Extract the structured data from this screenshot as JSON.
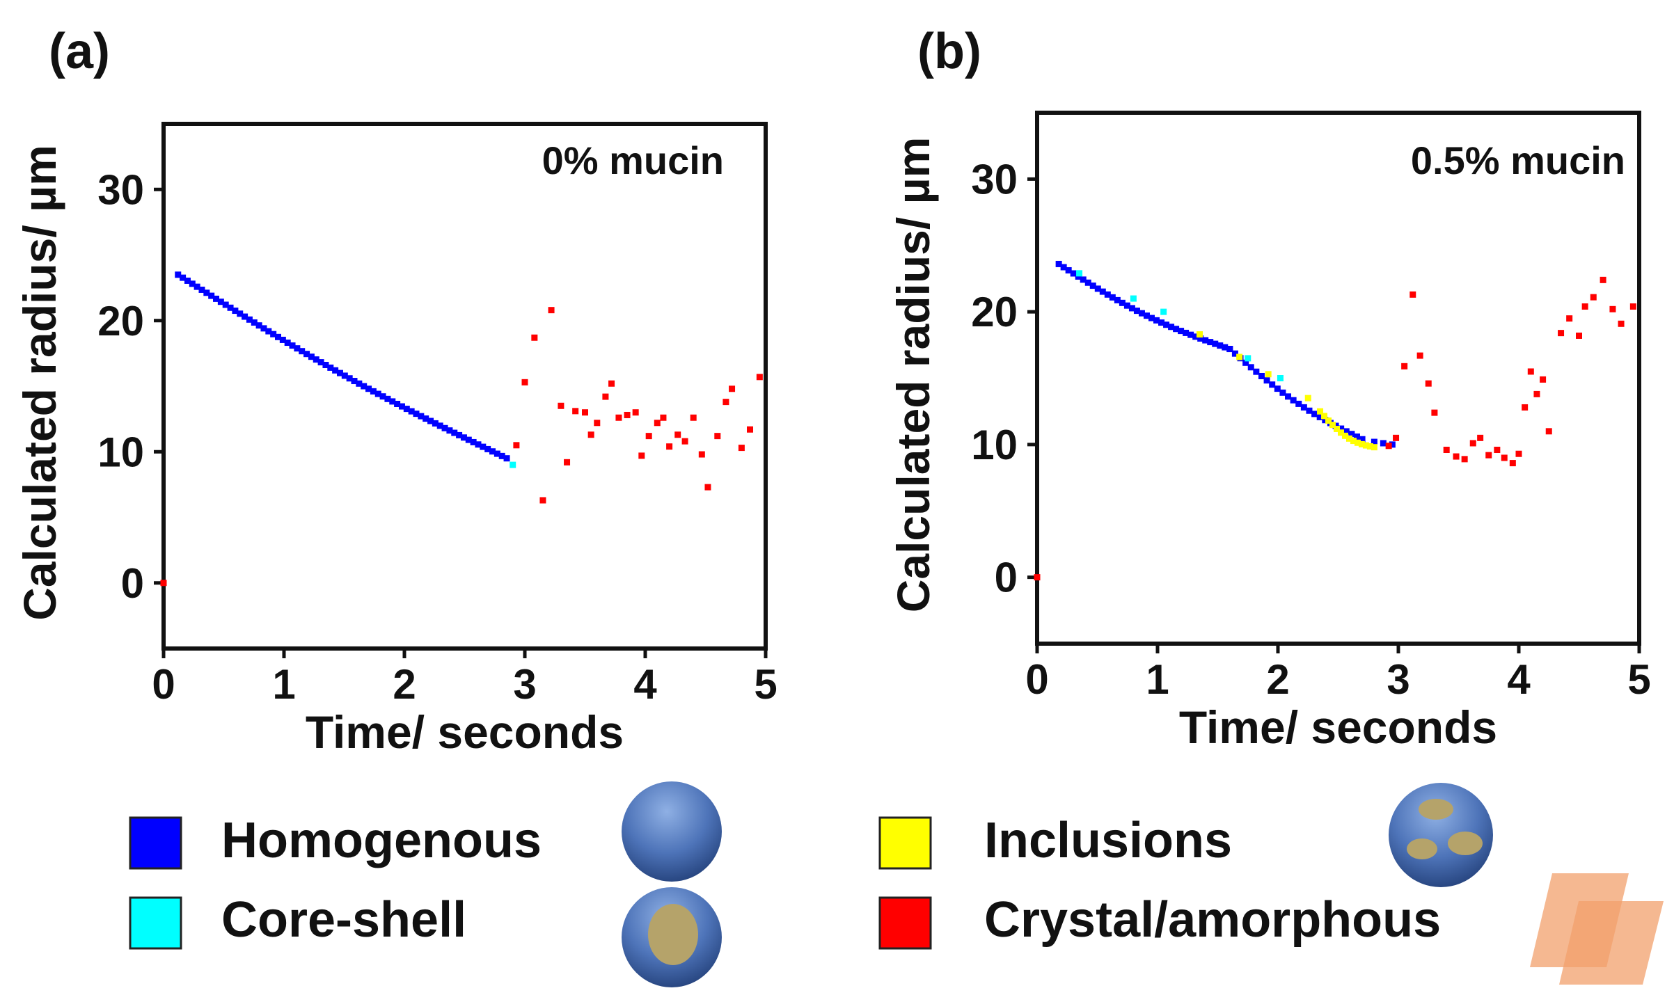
{
  "chart_data": [
    {
      "panel_label": "(a)",
      "type": "scatter",
      "annotation": "0% mucin",
      "xlabel": "Time/ seconds",
      "ylabel": "Calculated radius/ µm",
      "xlim": [
        0,
        5
      ],
      "ylim": [
        -5,
        35
      ],
      "xticks": [
        "0",
        "1",
        "2",
        "3",
        "4",
        "5"
      ],
      "yticks": [
        "0",
        "10",
        "20",
        "30"
      ],
      "segments": [
        {
          "category": "homogenous",
          "x_start": 0.12,
          "x_end": 2.85,
          "y_start": 23.5,
          "y_end": 9.5,
          "n": 70
        },
        {
          "category": "core-shell",
          "x_start": 2.9,
          "x_end": 2.9,
          "y_start": 9.0,
          "y_end": 9.0,
          "n": 1
        }
      ],
      "points": [
        {
          "x": 0.0,
          "y": 0.0,
          "category": "crystal"
        },
        {
          "x": 2.93,
          "y": 10.5,
          "category": "crystal"
        },
        {
          "x": 3.0,
          "y": 15.3,
          "category": "crystal"
        },
        {
          "x": 3.08,
          "y": 18.7,
          "category": "crystal"
        },
        {
          "x": 3.15,
          "y": 6.3,
          "category": "crystal"
        },
        {
          "x": 3.22,
          "y": 20.8,
          "category": "crystal"
        },
        {
          "x": 3.3,
          "y": 13.5,
          "category": "crystal"
        },
        {
          "x": 3.35,
          "y": 9.2,
          "category": "crystal"
        },
        {
          "x": 3.42,
          "y": 13.1,
          "category": "crystal"
        },
        {
          "x": 3.5,
          "y": 13.0,
          "category": "crystal"
        },
        {
          "x": 3.55,
          "y": 11.3,
          "category": "crystal"
        },
        {
          "x": 3.6,
          "y": 12.2,
          "category": "crystal"
        },
        {
          "x": 3.67,
          "y": 14.2,
          "category": "crystal"
        },
        {
          "x": 3.72,
          "y": 15.2,
          "category": "crystal"
        },
        {
          "x": 3.78,
          "y": 12.6,
          "category": "crystal"
        },
        {
          "x": 3.85,
          "y": 12.8,
          "category": "crystal"
        },
        {
          "x": 3.92,
          "y": 13.0,
          "category": "crystal"
        },
        {
          "x": 3.97,
          "y": 9.7,
          "category": "crystal"
        },
        {
          "x": 4.03,
          "y": 11.2,
          "category": "crystal"
        },
        {
          "x": 4.1,
          "y": 12.2,
          "category": "crystal"
        },
        {
          "x": 4.15,
          "y": 12.6,
          "category": "crystal"
        },
        {
          "x": 4.2,
          "y": 10.4,
          "category": "crystal"
        },
        {
          "x": 4.27,
          "y": 11.3,
          "category": "crystal"
        },
        {
          "x": 4.33,
          "y": 10.8,
          "category": "crystal"
        },
        {
          "x": 4.4,
          "y": 12.6,
          "category": "crystal"
        },
        {
          "x": 4.47,
          "y": 9.8,
          "category": "crystal"
        },
        {
          "x": 4.52,
          "y": 7.3,
          "category": "crystal"
        },
        {
          "x": 4.6,
          "y": 11.2,
          "category": "crystal"
        },
        {
          "x": 4.67,
          "y": 13.8,
          "category": "crystal"
        },
        {
          "x": 4.72,
          "y": 14.8,
          "category": "crystal"
        },
        {
          "x": 4.8,
          "y": 10.3,
          "category": "crystal"
        },
        {
          "x": 4.87,
          "y": 11.7,
          "category": "crystal"
        },
        {
          "x": 4.95,
          "y": 15.7,
          "category": "crystal"
        }
      ]
    },
    {
      "panel_label": "(b)",
      "type": "scatter",
      "annotation": "0.5% mucin",
      "xlabel": "Time/ seconds",
      "ylabel": "Calculated radius/ µm",
      "xlim": [
        0,
        5
      ],
      "ylim": [
        -5,
        35
      ],
      "xticks": [
        "0",
        "1",
        "2",
        "3",
        "4",
        "5"
      ],
      "yticks": [
        "0",
        "10",
        "20",
        "30"
      ],
      "segments": [
        {
          "category": "homogenous",
          "x_start": 0.18,
          "x_end": 1.6,
          "y_start": 23.6,
          "y_end": 17.2,
          "n": 36
        },
        {
          "category": "homogenous",
          "x_start": 1.6,
          "x_end": 2.7,
          "y_start": 17.2,
          "y_end": 10.4,
          "n": 26
        },
        {
          "category": "homogenous",
          "x_start": 2.8,
          "x_end": 2.95,
          "y_start": 10.2,
          "y_end": 10.0,
          "n": 3
        },
        {
          "category": "inclusions",
          "x_start": 2.35,
          "x_end": 2.8,
          "y_start": 12.5,
          "y_end": 9.8,
          "n": 14
        }
      ],
      "points": [
        {
          "x": 0.35,
          "y": 22.9,
          "category": "core-shell"
        },
        {
          "x": 0.8,
          "y": 21.0,
          "category": "core-shell"
        },
        {
          "x": 1.05,
          "y": 20.0,
          "category": "core-shell"
        },
        {
          "x": 1.75,
          "y": 16.5,
          "category": "core-shell"
        },
        {
          "x": 2.02,
          "y": 15.0,
          "category": "core-shell"
        },
        {
          "x": 1.35,
          "y": 18.3,
          "category": "inclusions"
        },
        {
          "x": 1.68,
          "y": 16.6,
          "category": "inclusions"
        },
        {
          "x": 1.92,
          "y": 15.3,
          "category": "inclusions"
        },
        {
          "x": 2.25,
          "y": 13.5,
          "category": "inclusions"
        },
        {
          "x": 0.0,
          "y": 0.0,
          "category": "crystal"
        },
        {
          "x": 2.92,
          "y": 9.9,
          "category": "crystal"
        },
        {
          "x": 2.98,
          "y": 10.5,
          "category": "crystal"
        },
        {
          "x": 3.05,
          "y": 15.9,
          "category": "crystal"
        },
        {
          "x": 3.12,
          "y": 21.3,
          "category": "crystal"
        },
        {
          "x": 3.18,
          "y": 16.7,
          "category": "crystal"
        },
        {
          "x": 3.25,
          "y": 14.6,
          "category": "crystal"
        },
        {
          "x": 3.3,
          "y": 12.4,
          "category": "crystal"
        },
        {
          "x": 3.4,
          "y": 9.6,
          "category": "crystal"
        },
        {
          "x": 3.48,
          "y": 9.1,
          "category": "crystal"
        },
        {
          "x": 3.55,
          "y": 8.9,
          "category": "crystal"
        },
        {
          "x": 3.62,
          "y": 10.1,
          "category": "crystal"
        },
        {
          "x": 3.68,
          "y": 10.5,
          "category": "crystal"
        },
        {
          "x": 3.75,
          "y": 9.2,
          "category": "crystal"
        },
        {
          "x": 3.82,
          "y": 9.6,
          "category": "crystal"
        },
        {
          "x": 3.88,
          "y": 9.0,
          "category": "crystal"
        },
        {
          "x": 3.95,
          "y": 8.6,
          "category": "crystal"
        },
        {
          "x": 4.0,
          "y": 9.3,
          "category": "crystal"
        },
        {
          "x": 4.05,
          "y": 12.8,
          "category": "crystal"
        },
        {
          "x": 4.1,
          "y": 15.5,
          "category": "crystal"
        },
        {
          "x": 4.15,
          "y": 13.8,
          "category": "crystal"
        },
        {
          "x": 4.2,
          "y": 14.9,
          "category": "crystal"
        },
        {
          "x": 4.25,
          "y": 11.0,
          "category": "crystal"
        },
        {
          "x": 4.35,
          "y": 18.4,
          "category": "crystal"
        },
        {
          "x": 4.42,
          "y": 19.5,
          "category": "crystal"
        },
        {
          "x": 4.5,
          "y": 18.2,
          "category": "crystal"
        },
        {
          "x": 4.55,
          "y": 20.4,
          "category": "crystal"
        },
        {
          "x": 4.62,
          "y": 21.1,
          "category": "crystal"
        },
        {
          "x": 4.7,
          "y": 22.4,
          "category": "crystal"
        },
        {
          "x": 4.78,
          "y": 20.2,
          "category": "crystal"
        },
        {
          "x": 4.85,
          "y": 19.1,
          "category": "crystal"
        },
        {
          "x": 4.95,
          "y": 20.4,
          "category": "crystal"
        }
      ]
    }
  ],
  "legend": [
    {
      "key": "homogenous",
      "label": "Homogenous",
      "color": "#0000ff"
    },
    {
      "key": "core-shell",
      "label": "Core-shell",
      "color": "#00ffff"
    },
    {
      "key": "inclusions",
      "label": "Inclusions",
      "color": "#ffff00"
    },
    {
      "key": "crystal",
      "label": "Crystal/amorphous",
      "color": "#ff0000"
    }
  ],
  "colors": {
    "sphere_light": "#7ea3dc",
    "sphere_dark": "#2a4a86",
    "inclusion_fill": "#b5a36a",
    "decoration": "#f2a06c"
  }
}
